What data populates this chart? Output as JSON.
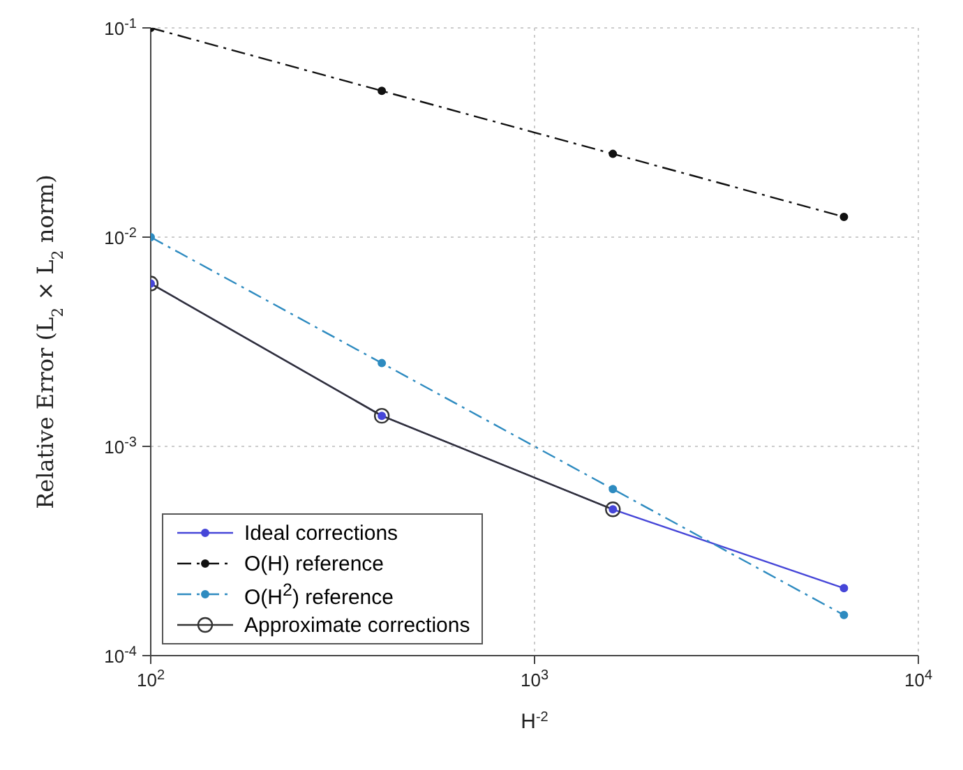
{
  "chart_data": {
    "type": "line",
    "xlabel": "H$^{-2}$",
    "ylabel": "Relative Error (L$_{2}$ × L$_{2}$ norm)",
    "log": "xy",
    "xlim": [
      100,
      10000
    ],
    "ylim": [
      0.0001,
      0.1
    ],
    "xticks": [
      {
        "value": 100,
        "label": "10$^{2}$"
      },
      {
        "value": 1000,
        "label": "10$^{3}$"
      },
      {
        "value": 10000,
        "label": "10$^{4}$"
      }
    ],
    "yticks": [
      {
        "value": 0.0001,
        "label": "10$^{-4}$"
      },
      {
        "value": 0.001,
        "label": "10$^{-3}$"
      },
      {
        "value": 0.01,
        "label": "10$^{-2}$"
      },
      {
        "value": 0.1,
        "label": "10$^{-1}$"
      }
    ],
    "grid": true,
    "legend": "bottom left",
    "series": [
      {
        "name": "Ideal corrections",
        "color": "#4646d8",
        "x": [
          100,
          400,
          1600,
          6400
        ],
        "values": [
          0.006,
          0.0014,
          0.0005,
          0.00021
        ],
        "marker": "circle",
        "line_style": "solid"
      },
      {
        "name": "O(H) reference",
        "color": "#111111",
        "x": [
          100,
          400,
          1600,
          6400
        ],
        "values": [
          0.1,
          0.05,
          0.025,
          0.0125
        ],
        "marker": "circle",
        "line_style": "dashed"
      },
      {
        "name": "O(H$^{2}$) reference",
        "color": "#2e8bc0",
        "x": [
          100,
          400,
          1600,
          6400
        ],
        "values": [
          0.01,
          0.0025,
          0.000625,
          0.00015625
        ],
        "marker": "circle",
        "line_style": "dashed"
      },
      {
        "name": "Approximate corrections",
        "color": "#333333",
        "x": [
          100,
          400,
          1600
        ],
        "values": [
          0.006,
          0.0014,
          0.0005
        ],
        "marker": "open-circle",
        "line_style": "solid"
      }
    ]
  }
}
